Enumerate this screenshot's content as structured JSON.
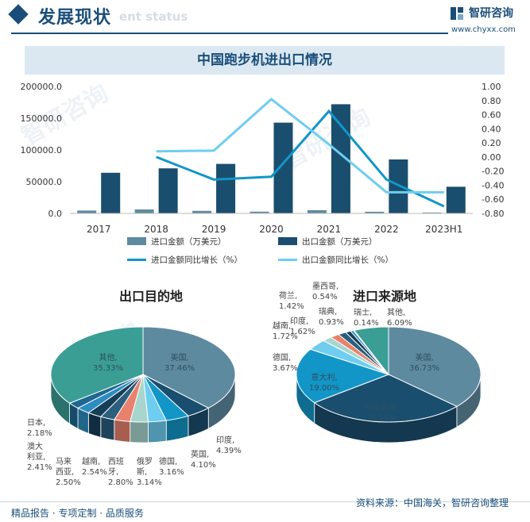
{
  "header": {
    "title": "发展现状",
    "subtitle": "ent status"
  },
  "brand": {
    "name": "智研咨询",
    "url": "www.chyxx.com",
    "watermark": "智研咨询"
  },
  "chart_title": "中国跑步机进出口情况",
  "chart_data": [
    {
      "type": "bar",
      "categories": [
        "2017",
        "2018",
        "2019",
        "2020",
        "2021",
        "2022",
        "2023H1"
      ],
      "y_left": {
        "ticks": [
          "0.0",
          "50000.0",
          "100000.0",
          "150000.0",
          "200000.0"
        ],
        "ylim": [
          0,
          200000
        ]
      },
      "y_right": {
        "ticks": [
          "-0.80",
          "-0.60",
          "-0.40",
          "-0.20",
          "0.00",
          "0.20",
          "0.40",
          "0.60",
          "0.80",
          "1.00"
        ],
        "ylim": [
          -0.8,
          1.0
        ]
      },
      "series": [
        {
          "name": "进口金额（万美元）",
          "type": "bar",
          "axis": "left",
          "color": "#5e8aa0",
          "values": [
            4500,
            6200,
            4000,
            2800,
            5000,
            2600,
            1400
          ]
        },
        {
          "name": "出口金额（万美元）",
          "type": "bar",
          "axis": "left",
          "color": "#1a4e6e",
          "values": [
            64000,
            71000,
            78000,
            143000,
            172000,
            85000,
            42000
          ]
        },
        {
          "name": "进口金额同比增长（%）",
          "type": "line",
          "axis": "right",
          "color": "#1296c8",
          "values": [
            null,
            0.0,
            -0.32,
            -0.28,
            0.65,
            -0.32,
            -0.7
          ]
        },
        {
          "name": "出口金额同比增长（%）",
          "type": "line",
          "axis": "right",
          "color": "#6fcdf0",
          "values": [
            null,
            0.08,
            0.09,
            0.82,
            0.18,
            -0.5,
            -0.5
          ]
        }
      ],
      "legend_position": "bottom"
    },
    {
      "type": "pie",
      "title": "出口目的地",
      "slices": [
        {
          "label": "美国,",
          "value_text": "37.46%",
          "value": 37.46,
          "color": "#5e8aa0"
        },
        {
          "label": "印度,",
          "value_text": "4.39%",
          "value": 4.39,
          "color": "#1a4e6e"
        },
        {
          "label": "英国,",
          "value_text": "4.10%",
          "value": 4.1,
          "color": "#1296c8"
        },
        {
          "label": "德国,",
          "value_text": "3.16%",
          "value": 3.16,
          "color": "#6fcdf0"
        },
        {
          "label": "俄罗斯,",
          "value_text": "3.14%",
          "value": 3.14,
          "color": "#a8d6cf"
        },
        {
          "label": "西班牙,",
          "value_text": "2.80%",
          "value": 2.8,
          "color": "#e8826c"
        },
        {
          "label": "越南,",
          "value_text": "2.54%",
          "value": 2.54,
          "color": "#2a5f7e"
        },
        {
          "label": "马来西亚,",
          "value_text": "2.50%",
          "value": 2.5,
          "color": "#163e58"
        },
        {
          "label": "澳大利亚,",
          "value_text": "2.41%",
          "value": 2.41,
          "color": "#2d8cc0"
        },
        {
          "label": "日本,",
          "value_text": "2.18%",
          "value": 2.18,
          "color": "#1d6891"
        },
        {
          "label": "其他,",
          "value_text": "35.33%",
          "value": 35.33,
          "color": "#3b9e95"
        }
      ]
    },
    {
      "type": "pie",
      "title": "进口来源地",
      "slices": [
        {
          "label": "美国,",
          "value_text": "36.73%",
          "value": 36.73,
          "color": "#5e8aa0"
        },
        {
          "label": "中国台湾,",
          "value_text": "28.15%",
          "value": 28.15,
          "color": "#1a4e6e"
        },
        {
          "label": "意大利,",
          "value_text": "19.00%",
          "value": 19.0,
          "color": "#1296c8"
        },
        {
          "label": "德国,",
          "value_text": "3.67%",
          "value": 3.67,
          "color": "#6fcdf0"
        },
        {
          "label": "越南,",
          "value_text": "1.72%",
          "value": 1.72,
          "color": "#a8d6cf"
        },
        {
          "label": "印度,",
          "value_text": "1.62%",
          "value": 1.62,
          "color": "#e8826c"
        },
        {
          "label": "荷兰,",
          "value_text": "1.42%",
          "value": 1.42,
          "color": "#2a5f7e"
        },
        {
          "label": "瑞典,",
          "value_text": "0.93%",
          "value": 0.93,
          "color": "#163e58"
        },
        {
          "label": "墨西哥,",
          "value_text": "0.54%",
          "value": 0.54,
          "color": "#2d8cc0"
        },
        {
          "label": "瑞士,",
          "value_text": "0.14%",
          "value": 0.14,
          "color": "#1d6891"
        },
        {
          "label": "其他,",
          "value_text": "6.09%",
          "value": 6.09,
          "color": "#3b9e95"
        }
      ]
    }
  ],
  "footer": {
    "left": "精品报告 · 专项定制 · 品质服务",
    "right": "资料来源：中国海关，智研咨询整理"
  }
}
